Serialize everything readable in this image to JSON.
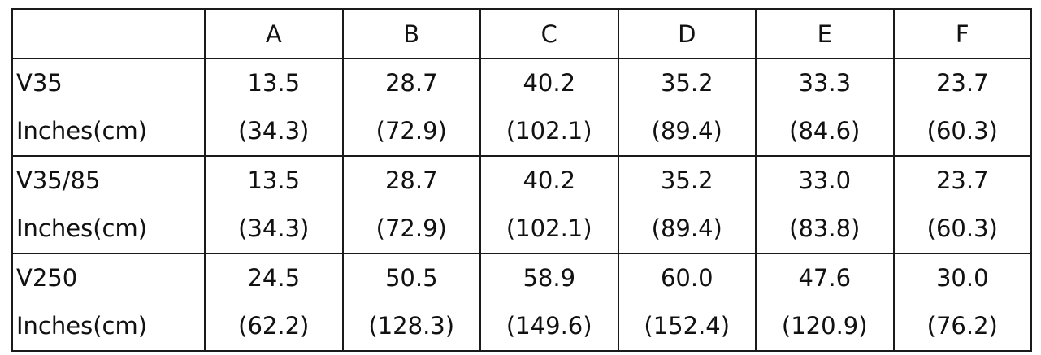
{
  "columns": [
    "A",
    "B",
    "C",
    "D",
    "E",
    "F"
  ],
  "rows": [
    {
      "model": "V35",
      "unit": "Inches(cm)",
      "inches": [
        "13.5",
        "28.7",
        "40.2",
        "35.2",
        "33.3",
        "23.7"
      ],
      "cm": [
        "(34.3)",
        "(72.9)",
        "(102.1)",
        "(89.4)",
        "(84.6)",
        "(60.3)"
      ]
    },
    {
      "model": "V35/85",
      "unit": "Inches(cm)",
      "inches": [
        "13.5",
        "28.7",
        "40.2",
        "35.2",
        "33.0",
        "23.7"
      ],
      "cm": [
        "(34.3)",
        "(72.9)",
        "(102.1)",
        "(89.4)",
        "(83.8)",
        "(60.3)"
      ]
    },
    {
      "model": "V250",
      "unit": "Inches(cm)",
      "inches": [
        "24.5",
        "50.5",
        "58.9",
        "60.0",
        "47.6",
        "30.0"
      ],
      "cm": [
        "(62.2)",
        "(128.3)",
        "(149.6)",
        "(152.4)",
        "(120.9)",
        "(76.2)"
      ]
    }
  ]
}
